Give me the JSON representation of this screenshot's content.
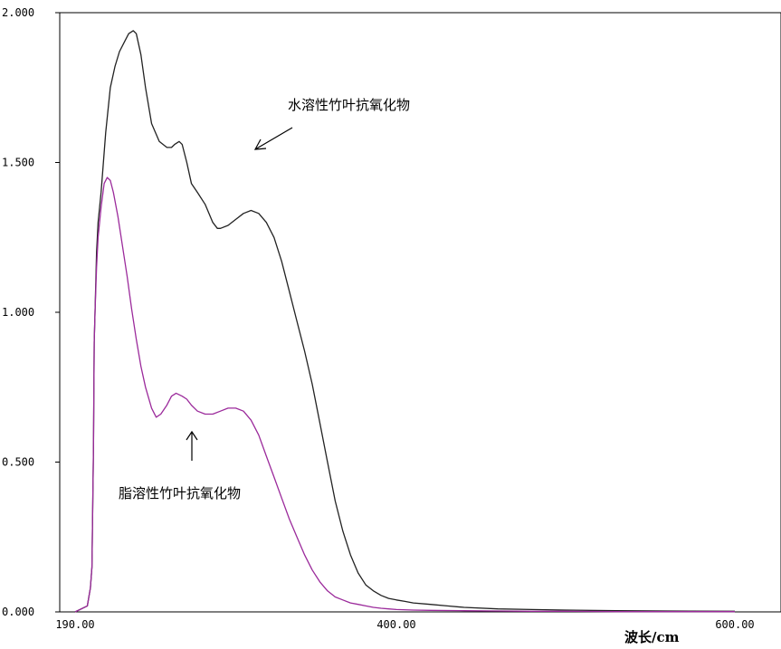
{
  "chart_data": {
    "type": "line",
    "title": "",
    "xlabel": "波长/cm",
    "ylabel": "",
    "xlim": [
      190,
      600
    ],
    "ylim": [
      0,
      2
    ],
    "grid": false,
    "x_ticks": [
      "190.00",
      "400.00",
      "600.00"
    ],
    "y_ticks": [
      "0.000",
      "0.500",
      "1.000",
      "1.500",
      "2.000"
    ],
    "series": [
      {
        "color": "#222222",
        "x": [
          190,
          198,
          200,
          201,
          202,
          202.5,
          203,
          204,
          205,
          207,
          210,
          213,
          216,
          219,
          222,
          225,
          228,
          230,
          233,
          236,
          240,
          245,
          250,
          253,
          255,
          258,
          260,
          263,
          266,
          270,
          275,
          280,
          283,
          285,
          290,
          295,
          300,
          305,
          310,
          315,
          320,
          325,
          330,
          335,
          340,
          345,
          350,
          355,
          360,
          365,
          370,
          375,
          380,
          385,
          390,
          395,
          400,
          405,
          410,
          420,
          430,
          440,
          460,
          480,
          500,
          530,
          560,
          600
        ],
        "y": [
          0,
          0.02,
          0.08,
          0.15,
          0.55,
          0.9,
          1.0,
          1.2,
          1.3,
          1.4,
          1.6,
          1.75,
          1.82,
          1.87,
          1.9,
          1.93,
          1.94,
          1.93,
          1.86,
          1.75,
          1.63,
          1.57,
          1.55,
          1.55,
          1.56,
          1.57,
          1.56,
          1.5,
          1.43,
          1.4,
          1.36,
          1.3,
          1.28,
          1.28,
          1.29,
          1.31,
          1.33,
          1.34,
          1.33,
          1.3,
          1.25,
          1.17,
          1.07,
          0.97,
          0.87,
          0.76,
          0.63,
          0.5,
          0.37,
          0.27,
          0.19,
          0.13,
          0.09,
          0.07,
          0.055,
          0.045,
          0.04,
          0.035,
          0.03,
          0.025,
          0.02,
          0.015,
          0.01,
          0.008,
          0.006,
          0.004,
          0.003,
          0.002
        ]
      },
      {
        "color": "#9b2a9b",
        "x": [
          190,
          198,
          200,
          201,
          202,
          202.5,
          203,
          204,
          205,
          207,
          209,
          211,
          213,
          215,
          218,
          221,
          224,
          227,
          230,
          233,
          236,
          240,
          243,
          246,
          250,
          253,
          256,
          260,
          263,
          266,
          270,
          275,
          280,
          285,
          290,
          295,
          300,
          305,
          310,
          315,
          320,
          325,
          330,
          335,
          340,
          345,
          350,
          355,
          360,
          365,
          370,
          375,
          380,
          385,
          390,
          395,
          400,
          410,
          420,
          440,
          460,
          480,
          500,
          530,
          560,
          600
        ],
        "y": [
          0,
          0.02,
          0.08,
          0.15,
          0.55,
          0.9,
          1.0,
          1.15,
          1.25,
          1.35,
          1.43,
          1.45,
          1.44,
          1.4,
          1.32,
          1.22,
          1.12,
          1.01,
          0.91,
          0.82,
          0.75,
          0.68,
          0.65,
          0.66,
          0.69,
          0.72,
          0.73,
          0.72,
          0.71,
          0.69,
          0.67,
          0.66,
          0.66,
          0.67,
          0.68,
          0.68,
          0.67,
          0.64,
          0.59,
          0.52,
          0.45,
          0.38,
          0.31,
          0.25,
          0.19,
          0.14,
          0.1,
          0.07,
          0.05,
          0.04,
          0.03,
          0.025,
          0.02,
          0.015,
          0.012,
          0.01,
          0.008,
          0.006,
          0.005,
          0.004,
          0.003,
          0.002,
          0.002,
          0.001,
          0.001,
          0.001
        ]
      }
    ],
    "annotations": [
      "水溶性竹叶抗氧化物",
      "脂溶性竹叶抗氧化物"
    ]
  }
}
